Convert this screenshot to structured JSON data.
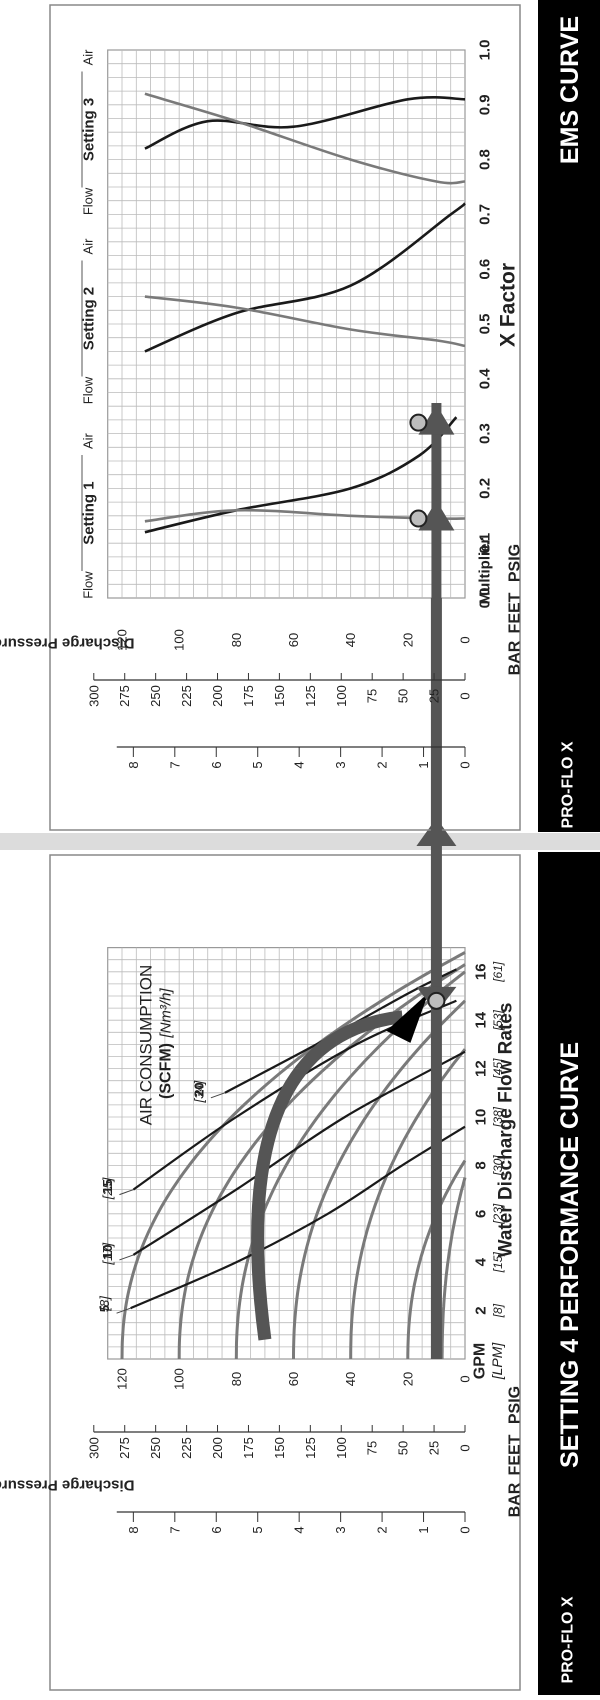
{
  "colors": {
    "band": "#000000",
    "grid": "#bbbbbb",
    "curve_dark": "#1a1a1a",
    "curve_gray": "#7a7a7a",
    "arrow": "#555555",
    "marker_fill": "#bdbdbd"
  },
  "panels": {
    "perf": {
      "title": "SETTING 4 PERFORMANCE CURVE",
      "logo": "PRO-FLO X",
      "header_bar": "BAR",
      "header_feet": "FEET",
      "header_psig": "PSIG",
      "xlabel": "Water Discharge Flow Rates",
      "ylabel": "Discharge Pressure",
      "gpm_label": "GPM",
      "lpm_label": "[LPM]",
      "air_title_1": "AIR CONSUMPTION",
      "air_title_2": "(SCFM)",
      "air_title_3": "[Nm³/h]"
    },
    "ems": {
      "title": "EMS CURVE",
      "logo": "PRO-FLO X",
      "header_bar": "BAR",
      "header_feet": "FEET",
      "header_psig": "PSIG",
      "xlabel": "X Factor",
      "ylabel": "Discharge Pressure",
      "multiplier_label": "Multiplier",
      "settings": [
        {
          "name": "Setting 1",
          "air": "Air",
          "flow": "Flow"
        },
        {
          "name": "Setting 2",
          "air": "Air",
          "flow": "Flow"
        },
        {
          "name": "Setting 3",
          "air": "Air",
          "flow": "Flow"
        }
      ]
    }
  },
  "chart_data": [
    {
      "type": "line",
      "title": "SETTING 4 PERFORMANCE CURVE",
      "xlabel": "Water Discharge Flow Rates",
      "ylabel": "Discharge Pressure",
      "xlim": [
        0,
        17
      ],
      "ylim": [
        0,
        125
      ],
      "x_ticks": [
        "2",
        "4",
        "6",
        "8",
        "10",
        "12",
        "14",
        "16"
      ],
      "x_ticks_lpm": [
        "[8]",
        "[15]",
        "[23]",
        "[30]",
        "[38]",
        "[45]",
        "[53]",
        "[61]"
      ],
      "psig_ticks": [
        "120",
        "100",
        "80",
        "60",
        "40",
        "20",
        "0"
      ],
      "feet_ticks": [
        "300",
        "275",
        "250",
        "225",
        "200",
        "175",
        "150",
        "125",
        "100",
        "75",
        "50",
        "25",
        "0"
      ],
      "bar_ticks": [
        "8",
        "7",
        "6",
        "5",
        "4",
        "3",
        "2",
        "1",
        "0"
      ],
      "pressure_curves": [
        {
          "start_psig": 120,
          "end_gpm": 16.8
        },
        {
          "start_psig": 100,
          "end_gpm": 16.3
        },
        {
          "start_psig": 80,
          "end_gpm": 16.0
        },
        {
          "start_psig": 60,
          "end_gpm": 14.8
        },
        {
          "start_psig": 40,
          "end_gpm": 12.8
        },
        {
          "start_psig": 20,
          "end_gpm": 8.2
        },
        {
          "start_psig": 8,
          "end_gpm": 7.5
        }
      ],
      "air_consumption": [
        {
          "label": "5",
          "label_alt": "[8]",
          "points": [
            [
              2.1,
              117
            ],
            [
              4,
              80
            ],
            [
              6,
              48
            ],
            [
              8,
              22
            ],
            [
              9.6,
              0
            ]
          ]
        },
        {
          "label": "10",
          "label_alt": "[17]",
          "points": [
            [
              4.3,
              116
            ],
            [
              7,
              80
            ],
            [
              10,
              42
            ],
            [
              12.7,
              0
            ]
          ]
        },
        {
          "label": "15",
          "label_alt": "[25]",
          "points": [
            [
              7,
              116
            ],
            [
              10,
              80
            ],
            [
              13,
              38
            ],
            [
              14.8,
              3
            ]
          ]
        },
        {
          "label": "20",
          "label_alt": "[34]",
          "points": [
            [
              11,
              84
            ],
            [
              13,
              52
            ],
            [
              15.1,
              20
            ],
            [
              16.1,
              3
            ]
          ]
        }
      ],
      "operating_point": {
        "gpm": 14.8,
        "psig": 10
      },
      "operating_path_start": {
        "gpm": 0.8,
        "psig": 70
      }
    },
    {
      "type": "line",
      "title": "EMS CURVE",
      "xlabel": "X Factor",
      "ylabel": "Discharge Pressure",
      "xlim": [
        0,
        1.0
      ],
      "ylim": [
        0,
        125
      ],
      "x_ticks": [
        "0.0",
        "0.1",
        "0.2",
        "0.3",
        "0.4",
        "0.5",
        "0.6",
        "0.7",
        "0.8",
        "0.9",
        "1.0"
      ],
      "psig_ticks": [
        "120",
        "100",
        "80",
        "60",
        "40",
        "20",
        "0"
      ],
      "feet_ticks": [
        "300",
        "275",
        "250",
        "225",
        "200",
        "175",
        "150",
        "125",
        "100",
        "75",
        "50",
        "25",
        "0"
      ],
      "bar_ticks": [
        "8",
        "7",
        "6",
        "5",
        "4",
        "3",
        "2",
        "1",
        "0"
      ],
      "series": [
        {
          "name": "Setting 1 Air",
          "points": [
            [
              0.12,
              112
            ],
            [
              0.16,
              80
            ],
            [
              0.2,
              40
            ],
            [
              0.26,
              16
            ],
            [
              0.33,
              3
            ]
          ]
        },
        {
          "name": "Setting 1 Flow",
          "points": [
            [
              0.14,
              112
            ],
            [
              0.16,
              80
            ],
            [
              0.15,
              40
            ],
            [
              0.145,
              10
            ],
            [
              0.145,
              0
            ]
          ]
        },
        {
          "name": "Setting 2 Flow",
          "points": [
            [
              0.45,
              112
            ],
            [
              0.52,
              80
            ],
            [
              0.57,
              40
            ],
            [
              0.7,
              5
            ],
            [
              0.72,
              0
            ]
          ]
        },
        {
          "name": "Setting 2 Air",
          "points": [
            [
              0.55,
              112
            ],
            [
              0.53,
              80
            ],
            [
              0.49,
              40
            ],
            [
              0.47,
              10
            ],
            [
              0.46,
              0
            ]
          ]
        },
        {
          "name": "Setting 3 Flow",
          "points": [
            [
              0.82,
              112
            ],
            [
              0.87,
              90
            ],
            [
              0.86,
              60
            ],
            [
              0.91,
              20
            ],
            [
              0.91,
              0
            ]
          ]
        },
        {
          "name": "Setting 3 Air",
          "points": [
            [
              0.92,
              112
            ],
            [
              0.87,
              80
            ],
            [
              0.8,
              40
            ],
            [
              0.76,
              10
            ],
            [
              0.76,
              0
            ]
          ]
        }
      ],
      "markers": [
        {
          "x": 0.145,
          "psig": 10
        },
        {
          "x": 0.32,
          "psig": 10
        }
      ]
    }
  ]
}
